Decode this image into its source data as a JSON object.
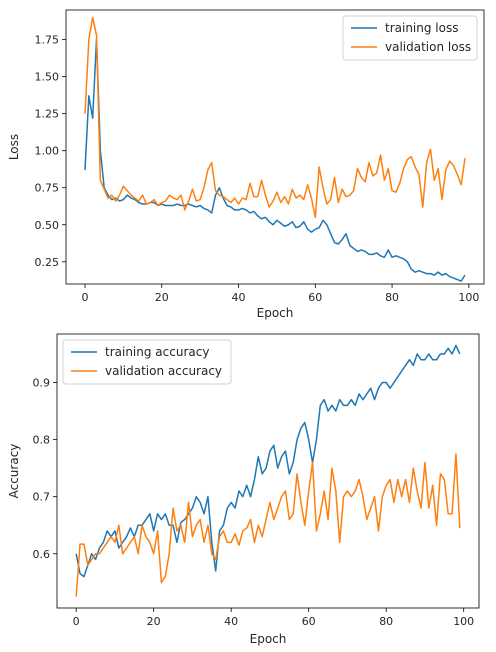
{
  "chart_data": [
    {
      "type": "line",
      "xlabel": "Epoch",
      "ylabel": "Loss",
      "xlim": [
        -4.95,
        103.95
      ],
      "ylim": [
        0.1,
        1.95
      ],
      "xticks": [
        0,
        20,
        40,
        60,
        80,
        100
      ],
      "xtick_labels": [
        "0",
        "20",
        "40",
        "60",
        "80",
        "100"
      ],
      "yticks": [
        0.25,
        0.5,
        0.75,
        1.0,
        1.25,
        1.5,
        1.75
      ],
      "ytick_labels": [
        "0.25",
        "0.50",
        "0.75",
        "1.00",
        "1.25",
        "1.50",
        "1.75"
      ],
      "legend_position": "top-right",
      "grid": false,
      "series": [
        {
          "name": "training loss",
          "color": "#1f77b4",
          "x": [
            0,
            1,
            2,
            3,
            4,
            5,
            6,
            7,
            8,
            9,
            10,
            11,
            12,
            13,
            14,
            15,
            16,
            17,
            18,
            19,
            20,
            21,
            22,
            23,
            24,
            25,
            26,
            27,
            28,
            29,
            30,
            31,
            32,
            33,
            34,
            35,
            36,
            37,
            38,
            39,
            40,
            41,
            42,
            43,
            44,
            45,
            46,
            47,
            48,
            49,
            50,
            51,
            52,
            53,
            54,
            55,
            56,
            57,
            58,
            59,
            60,
            61,
            62,
            63,
            64,
            65,
            66,
            67,
            68,
            69,
            70,
            71,
            72,
            73,
            74,
            75,
            76,
            77,
            78,
            79,
            80,
            81,
            82,
            83,
            84,
            85,
            86,
            87,
            88,
            89,
            90,
            91,
            92,
            93,
            94,
            95,
            96,
            97,
            98,
            99
          ],
          "y": [
            0.87,
            1.37,
            1.22,
            1.75,
            1.0,
            0.75,
            0.7,
            0.67,
            0.68,
            0.66,
            0.67,
            0.7,
            0.68,
            0.67,
            0.65,
            0.64,
            0.64,
            0.65,
            0.65,
            0.63,
            0.64,
            0.63,
            0.63,
            0.63,
            0.64,
            0.63,
            0.63,
            0.64,
            0.63,
            0.62,
            0.63,
            0.61,
            0.6,
            0.58,
            0.7,
            0.75,
            0.68,
            0.63,
            0.62,
            0.6,
            0.6,
            0.61,
            0.6,
            0.58,
            0.59,
            0.56,
            0.54,
            0.55,
            0.52,
            0.5,
            0.53,
            0.51,
            0.49,
            0.5,
            0.52,
            0.48,
            0.49,
            0.52,
            0.47,
            0.45,
            0.47,
            0.48,
            0.53,
            0.5,
            0.44,
            0.38,
            0.37,
            0.4,
            0.44,
            0.36,
            0.34,
            0.32,
            0.33,
            0.32,
            0.3,
            0.3,
            0.31,
            0.29,
            0.28,
            0.33,
            0.28,
            0.29,
            0.28,
            0.27,
            0.25,
            0.2,
            0.18,
            0.19,
            0.18,
            0.17,
            0.17,
            0.16,
            0.18,
            0.16,
            0.17,
            0.15,
            0.14,
            0.13,
            0.12,
            0.16
          ]
        },
        {
          "name": "validation loss",
          "color": "#ff7f0e",
          "x": [
            0,
            1,
            2,
            3,
            4,
            5,
            6,
            7,
            8,
            9,
            10,
            11,
            12,
            13,
            14,
            15,
            16,
            17,
            18,
            19,
            20,
            21,
            22,
            23,
            24,
            25,
            26,
            27,
            28,
            29,
            30,
            31,
            32,
            33,
            34,
            35,
            36,
            37,
            38,
            39,
            40,
            41,
            42,
            43,
            44,
            45,
            46,
            47,
            48,
            49,
            50,
            51,
            52,
            53,
            54,
            55,
            56,
            57,
            58,
            59,
            60,
            61,
            62,
            63,
            64,
            65,
            66,
            67,
            68,
            69,
            70,
            71,
            72,
            73,
            74,
            75,
            76,
            77,
            78,
            79,
            80,
            81,
            82,
            83,
            84,
            85,
            86,
            87,
            88,
            89,
            90,
            91,
            92,
            93,
            94,
            95,
            96,
            97,
            98,
            99
          ],
          "y": [
            1.25,
            1.75,
            1.9,
            1.78,
            0.8,
            0.74,
            0.68,
            0.7,
            0.66,
            0.7,
            0.76,
            0.73,
            0.7,
            0.68,
            0.66,
            0.7,
            0.64,
            0.65,
            0.67,
            0.63,
            0.65,
            0.66,
            0.7,
            0.68,
            0.67,
            0.7,
            0.6,
            0.66,
            0.74,
            0.66,
            0.67,
            0.75,
            0.87,
            0.92,
            0.73,
            0.7,
            0.69,
            0.67,
            0.65,
            0.68,
            0.64,
            0.68,
            0.67,
            0.78,
            0.69,
            0.69,
            0.8,
            0.7,
            0.62,
            0.66,
            0.72,
            0.65,
            0.69,
            0.64,
            0.74,
            0.68,
            0.7,
            0.67,
            0.77,
            0.68,
            0.55,
            0.89,
            0.75,
            0.64,
            0.67,
            0.82,
            0.65,
            0.74,
            0.69,
            0.7,
            0.73,
            0.88,
            0.82,
            0.79,
            0.92,
            0.83,
            0.85,
            0.97,
            0.8,
            0.88,
            0.73,
            0.72,
            0.78,
            0.88,
            0.94,
            0.96,
            0.89,
            0.84,
            0.62,
            0.92,
            1.01,
            0.8,
            0.88,
            0.67,
            0.87,
            0.93,
            0.9,
            0.84,
            0.77,
            0.95
          ]
        }
      ]
    },
    {
      "type": "line",
      "xlabel": "Epoch",
      "ylabel": "Accuracy",
      "xlim": [
        -4.95,
        103.95
      ],
      "ylim": [
        0.505,
        0.985
      ],
      "xticks": [
        0,
        20,
        40,
        60,
        80,
        100
      ],
      "xtick_labels": [
        "0",
        "20",
        "40",
        "60",
        "80",
        "100"
      ],
      "yticks": [
        0.6,
        0.7,
        0.8,
        0.9
      ],
      "ytick_labels": [
        "0.6",
        "0.7",
        "0.8",
        "0.9"
      ],
      "legend_position": "top-left",
      "grid": false,
      "series": [
        {
          "name": "training accuracy",
          "color": "#1f77b4",
          "x": [
            0,
            1,
            2,
            3,
            4,
            5,
            6,
            7,
            8,
            9,
            10,
            11,
            12,
            13,
            14,
            15,
            16,
            17,
            18,
            19,
            20,
            21,
            22,
            23,
            24,
            25,
            26,
            27,
            28,
            29,
            30,
            31,
            32,
            33,
            34,
            35,
            36,
            37,
            38,
            39,
            40,
            41,
            42,
            43,
            44,
            45,
            46,
            47,
            48,
            49,
            50,
            51,
            52,
            53,
            54,
            55,
            56,
            57,
            58,
            59,
            60,
            61,
            62,
            63,
            64,
            65,
            66,
            67,
            68,
            69,
            70,
            71,
            72,
            73,
            74,
            75,
            76,
            77,
            78,
            79,
            80,
            81,
            82,
            83,
            84,
            85,
            86,
            87,
            88,
            89,
            90,
            91,
            92,
            93,
            94,
            95,
            96,
            97,
            98,
            99
          ],
          "y": [
            0.6,
            0.565,
            0.56,
            0.58,
            0.6,
            0.59,
            0.61,
            0.62,
            0.64,
            0.63,
            0.64,
            0.61,
            0.62,
            0.63,
            0.645,
            0.63,
            0.65,
            0.65,
            0.66,
            0.67,
            0.64,
            0.67,
            0.66,
            0.67,
            0.65,
            0.65,
            0.62,
            0.655,
            0.66,
            0.67,
            0.68,
            0.7,
            0.69,
            0.67,
            0.7,
            0.62,
            0.57,
            0.64,
            0.65,
            0.68,
            0.69,
            0.68,
            0.71,
            0.7,
            0.72,
            0.7,
            0.73,
            0.77,
            0.74,
            0.75,
            0.78,
            0.79,
            0.75,
            0.77,
            0.78,
            0.74,
            0.76,
            0.8,
            0.82,
            0.83,
            0.8,
            0.76,
            0.8,
            0.86,
            0.87,
            0.85,
            0.86,
            0.85,
            0.87,
            0.86,
            0.86,
            0.87,
            0.86,
            0.88,
            0.87,
            0.88,
            0.89,
            0.87,
            0.89,
            0.9,
            0.9,
            0.89,
            0.9,
            0.91,
            0.92,
            0.93,
            0.94,
            0.93,
            0.95,
            0.94,
            0.94,
            0.95,
            0.94,
            0.94,
            0.95,
            0.95,
            0.96,
            0.95,
            0.965,
            0.95
          ]
        },
        {
          "name": "validation accuracy",
          "color": "#ff7f0e",
          "x": [
            0,
            1,
            2,
            3,
            4,
            5,
            6,
            7,
            8,
            9,
            10,
            11,
            12,
            13,
            14,
            15,
            16,
            17,
            18,
            19,
            20,
            21,
            22,
            23,
            24,
            25,
            26,
            27,
            28,
            29,
            30,
            31,
            32,
            33,
            34,
            35,
            36,
            37,
            38,
            39,
            40,
            41,
            42,
            43,
            44,
            45,
            46,
            47,
            48,
            49,
            50,
            51,
            52,
            53,
            54,
            55,
            56,
            57,
            58,
            59,
            60,
            61,
            62,
            63,
            64,
            65,
            66,
            67,
            68,
            69,
            70,
            71,
            72,
            73,
            74,
            75,
            76,
            77,
            78,
            79,
            80,
            81,
            82,
            83,
            84,
            85,
            86,
            87,
            88,
            89,
            90,
            91,
            92,
            93,
            94,
            95,
            96,
            97,
            98,
            99
          ],
          "y": [
            0.525,
            0.617,
            0.617,
            0.58,
            0.59,
            0.6,
            0.6,
            0.61,
            0.62,
            0.63,
            0.62,
            0.65,
            0.6,
            0.61,
            0.62,
            0.63,
            0.6,
            0.65,
            0.63,
            0.62,
            0.6,
            0.64,
            0.55,
            0.56,
            0.6,
            0.68,
            0.64,
            0.65,
            0.62,
            0.69,
            0.63,
            0.65,
            0.66,
            0.62,
            0.65,
            0.6,
            0.59,
            0.63,
            0.64,
            0.62,
            0.62,
            0.635,
            0.615,
            0.64,
            0.645,
            0.66,
            0.62,
            0.65,
            0.63,
            0.66,
            0.69,
            0.66,
            0.68,
            0.7,
            0.71,
            0.66,
            0.67,
            0.74,
            0.69,
            0.65,
            0.71,
            0.76,
            0.64,
            0.67,
            0.71,
            0.66,
            0.75,
            0.71,
            0.62,
            0.7,
            0.71,
            0.7,
            0.71,
            0.73,
            0.7,
            0.66,
            0.68,
            0.7,
            0.64,
            0.7,
            0.72,
            0.73,
            0.69,
            0.73,
            0.7,
            0.73,
            0.69,
            0.75,
            0.71,
            0.68,
            0.76,
            0.68,
            0.72,
            0.65,
            0.74,
            0.73,
            0.67,
            0.67,
            0.775,
            0.645
          ]
        }
      ]
    }
  ]
}
